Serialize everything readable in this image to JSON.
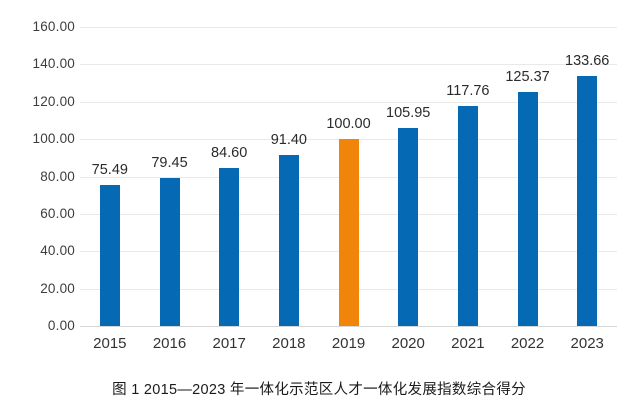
{
  "chart_data": {
    "type": "bar",
    "title": "图 1  2015—2023 年一体化示范区人才一体化发展指数综合得分",
    "categories": [
      "2015",
      "2016",
      "2017",
      "2018",
      "2019",
      "2020",
      "2021",
      "2022",
      "2023"
    ],
    "values": [
      75.49,
      79.45,
      84.6,
      91.4,
      100.0,
      105.95,
      117.76,
      125.37,
      133.66
    ],
    "value_labels": [
      "75.49",
      "79.45",
      "84.60",
      "91.40",
      "100.00",
      "105.95",
      "117.76",
      "125.37",
      "133.66"
    ],
    "highlight_index": 4,
    "bar_color": "#0569b4",
    "highlight_color": "#f0850a",
    "y_ticks": [
      160,
      140,
      120,
      100,
      80,
      60,
      40,
      20,
      0
    ],
    "y_tick_labels": [
      "160.00",
      "140.00",
      "120.00",
      "100.00",
      "80.00",
      "60.00",
      "40.00",
      "20.00",
      "0.00"
    ],
    "ylim": [
      0,
      160
    ],
    "grid": "horizontal",
    "legend": "none",
    "xlabel": "",
    "ylabel": ""
  }
}
